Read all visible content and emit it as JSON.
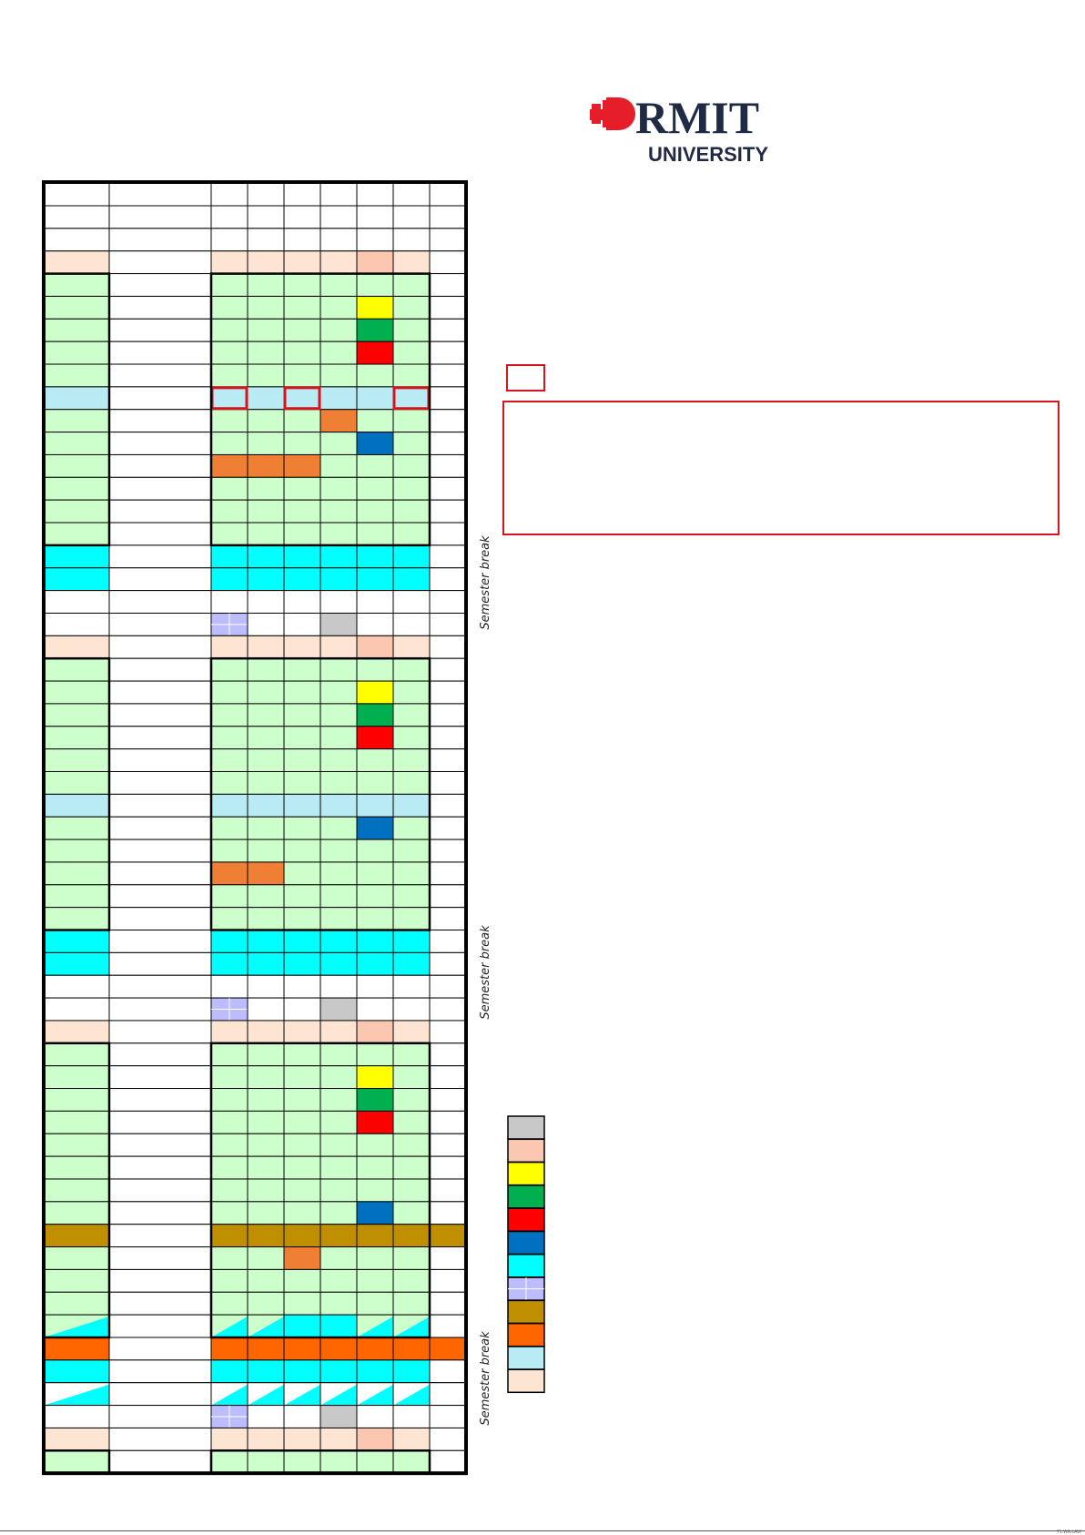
{
  "document": {
    "logo": {
      "name": "RMIT",
      "subtitle": "UNIVERSITY",
      "mark": "red-pixel-shield",
      "color": "#e61e2a"
    },
    "semester_break_label": "Semester break",
    "footer_text": "T1.WA.LAW"
  },
  "colors": {
    "W": "#ffffff",
    "P": "#fde4d3",
    "S": "#fbc7b1",
    "G": "#ccffcc",
    "Y": "#ffff00",
    "D": "#00b050",
    "R": "#ff0000",
    "B": "#0070c0",
    "L": "#b9ebf5",
    "O": "#ee7f35",
    "C": "#00ffff",
    "V": "#bcbcff",
    "X": "#c8c8c8",
    "K": "#bf8f00",
    "N": "#ff6600",
    "T": "triangle-cyan-on-green",
    "U": "triangle-cyan-on-white"
  },
  "calendar_rows": [
    "WWWWWWWWW",
    "WWWWWWWWW",
    "PWPPPPSPW",
    "GWGGGGGGW",
    "GWGGGGYGW",
    "GWGGGGDGW",
    "GWGGGGRGW",
    "GWGGGGGGW",
    "LWLLLLLLW",
    "GWGGGOGGW",
    "GWGGGGBGW",
    "GWOOOGGGW",
    "GWGGGGGGW",
    "GWGGGGGGW",
    "GWGGGGGGW",
    "CWCCCCCCW",
    "CWCCCCCCW",
    "WWWWWWWWW",
    "WWVWWXWWW",
    "PWPPPPSPW",
    "GWGGGGGGW",
    "GWGGGGYGW",
    "GWGGGGDGW",
    "GWGGGGRGW",
    "GWGGGGGGW",
    "GWGGGGGGW",
    "LWLLLLLLW",
    "GWGGGGBGW",
    "GWGGGGGGW",
    "GWOOGGGGW",
    "GWGGGGGGW",
    "GWGGGGGGW",
    "CWCCCCCCW",
    "CWCCCCCCW",
    "WWWWWWWWW",
    "WWVWWXWWW",
    "PWPPPPSPW",
    "GWGGGGGGW",
    "GWGGGGYGW",
    "GWGGGGDGW",
    "GWGGGGRGW",
    "GWGGGGGGW",
    "GWGGGGGGW",
    "GWGGGGGGW",
    "GWGGGGBGW",
    "KWKKKKKKK",
    "GWGGOGGGW",
    "GWGGGGGGW",
    "GWGGGGGGW",
    "TWTTCCTTW",
    "NWNNNNNNN",
    "CWCCCCCCW",
    "UWUUUUUUW",
    "WWVWWXWWW",
    "PWPPPPSPW",
    "GWGGGGGGW"
  ],
  "highlighted_cells": [
    {
      "row": 8,
      "col": 2
    },
    {
      "row": 8,
      "col": 4
    },
    {
      "row": 8,
      "col": 7
    }
  ],
  "legend_swatches": [
    "X",
    "S",
    "Y",
    "D",
    "R",
    "B",
    "C",
    "V",
    "K",
    "N",
    "L",
    "P"
  ]
}
